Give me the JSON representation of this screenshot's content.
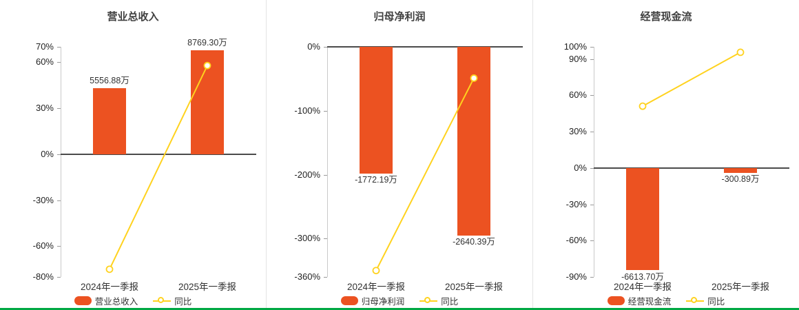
{
  "meta": {
    "bar_color": "#ec5221",
    "line_color": "#ffd21e",
    "bottom_accent_color": "#00a843"
  },
  "chart_data": [
    {
      "type": "bar",
      "title": "营业总收入",
      "categories": [
        "2024年一季报",
        "2025年一季报"
      ],
      "series": [
        {
          "name": "营业总收入",
          "kind": "bar",
          "unit": "万",
          "values": [
            5556.88,
            8769.3
          ],
          "labels": [
            "5556.88万",
            "8769.30万"
          ],
          "color": "#ec5221",
          "display_pct": [
            43,
            67.8
          ]
        },
        {
          "name": "同比",
          "kind": "line",
          "unit": "%",
          "values": [
            -75,
            57.8
          ],
          "color": "#ffd21e"
        }
      ],
      "yticks": [
        70,
        60,
        30,
        0,
        -30,
        -60,
        -80
      ],
      "ylim": [
        70,
        -80
      ],
      "grid": false,
      "legend_position": "bottom"
    },
    {
      "type": "bar",
      "title": "归母净利润",
      "categories": [
        "2024年一季报",
        "2025年一季报"
      ],
      "series": [
        {
          "name": "归母净利润",
          "kind": "bar",
          "unit": "万",
          "values": [
            -1772.19,
            -2640.39
          ],
          "labels": [
            "-1772.19万",
            "-2640.39万"
          ],
          "color": "#ec5221",
          "display_pct": [
            -198.5,
            -295.8
          ]
        },
        {
          "name": "同比",
          "kind": "line",
          "unit": "%",
          "values": [
            -350,
            -49
          ],
          "color": "#ffd21e"
        }
      ],
      "yticks": [
        0,
        -100,
        -200,
        -300,
        -360
      ],
      "ylim": [
        0,
        -360
      ],
      "grid": false,
      "legend_position": "bottom"
    },
    {
      "type": "bar",
      "title": "经营现金流",
      "categories": [
        "2024年一季报",
        "2025年一季报"
      ],
      "series": [
        {
          "name": "经营现金流",
          "kind": "bar",
          "unit": "万",
          "values": [
            -6613.7,
            -300.89
          ],
          "labels": [
            "-6613.70万",
            "-300.89万"
          ],
          "color": "#ec5221",
          "display_pct": [
            -84.6,
            -3.9
          ]
        },
        {
          "name": "同比",
          "kind": "line",
          "unit": "%",
          "values": [
            51,
            95.5
          ],
          "color": "#ffd21e"
        }
      ],
      "yticks": [
        100,
        90,
        60,
        30,
        0,
        -30,
        -60,
        -90
      ],
      "ylim": [
        100,
        -90
      ],
      "grid": false,
      "legend_position": "bottom"
    }
  ]
}
